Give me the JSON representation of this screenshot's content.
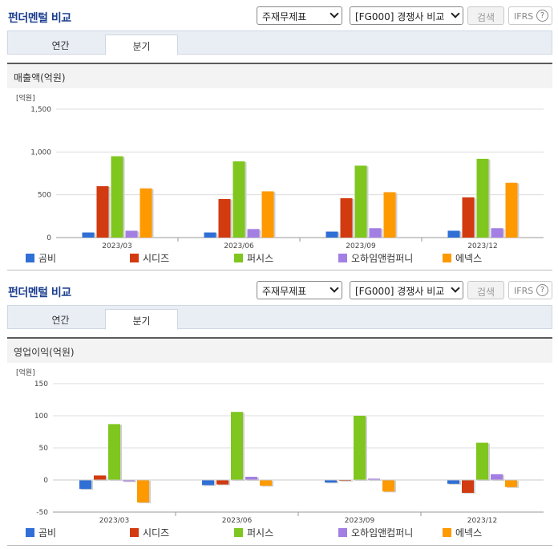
{
  "sections": [
    {
      "title": "펀더멘털 비교",
      "select1": "주재무제표",
      "select2": "[FG000] 경쟁사 비교",
      "search_label": "검색",
      "ifrs_label": "IFRS",
      "help_label": "?",
      "tabs": [
        "연간",
        "분기"
      ],
      "active_tab": "분기",
      "metric_title": "매출액(억원)"
    },
    {
      "title": "펀더멘털 비교",
      "select1": "주재무제표",
      "select2": "[FG000] 경쟁사 비교",
      "search_label": "검색",
      "ifrs_label": "IFRS",
      "help_label": "?",
      "tabs": [
        "연간",
        "분기"
      ],
      "active_tab": "분기",
      "metric_title": "영업이익(억원)"
    }
  ],
  "colors": {
    "series": [
      "#2f6fd6",
      "#d23a10",
      "#7fc61e",
      "#a37fe3",
      "#ff9900"
    ]
  },
  "chart_data": [
    {
      "type": "bar",
      "title": "매출액(억원)",
      "unit_label": "[억원]",
      "categories": [
        "2023/03",
        "2023/06",
        "2023/09",
        "2023/12"
      ],
      "ylim": [
        0,
        1500
      ],
      "yticks": [
        0,
        500,
        1000,
        1500
      ],
      "ytick_labels": [
        "0",
        "500",
        "1,000",
        "1,500"
      ],
      "grid": true,
      "legend": "bottom",
      "series": [
        {
          "name": "곰비",
          "values": [
            60,
            60,
            70,
            80
          ]
        },
        {
          "name": "시디즈",
          "values": [
            600,
            450,
            460,
            470
          ]
        },
        {
          "name": "퍼시스",
          "values": [
            950,
            890,
            840,
            920
          ]
        },
        {
          "name": "오하임앤컴퍼니",
          "values": [
            80,
            100,
            110,
            110
          ]
        },
        {
          "name": "에넥스",
          "values": [
            575,
            540,
            530,
            640
          ]
        }
      ]
    },
    {
      "type": "bar",
      "title": "영업이익(억원)",
      "unit_label": "[억원]",
      "categories": [
        "2023/03",
        "2023/06",
        "2023/09",
        "2023/12"
      ],
      "ylim": [
        -50,
        150
      ],
      "yticks": [
        -50,
        0,
        50,
        100,
        150
      ],
      "ytick_labels": [
        "-50",
        "0",
        "50",
        "100",
        "150"
      ],
      "grid": true,
      "legend": "bottom",
      "series": [
        {
          "name": "곰비",
          "values": [
            -14,
            -8,
            -4,
            -6
          ]
        },
        {
          "name": "시디즈",
          "values": [
            7,
            -7,
            0,
            -20
          ]
        },
        {
          "name": "퍼시스",
          "values": [
            87,
            106,
            100,
            58
          ]
        },
        {
          "name": "오하임앤컴퍼니",
          "values": [
            -2,
            5,
            2,
            9
          ]
        },
        {
          "name": "에넥스",
          "values": [
            -35,
            -9,
            -18,
            -11
          ]
        }
      ]
    }
  ]
}
